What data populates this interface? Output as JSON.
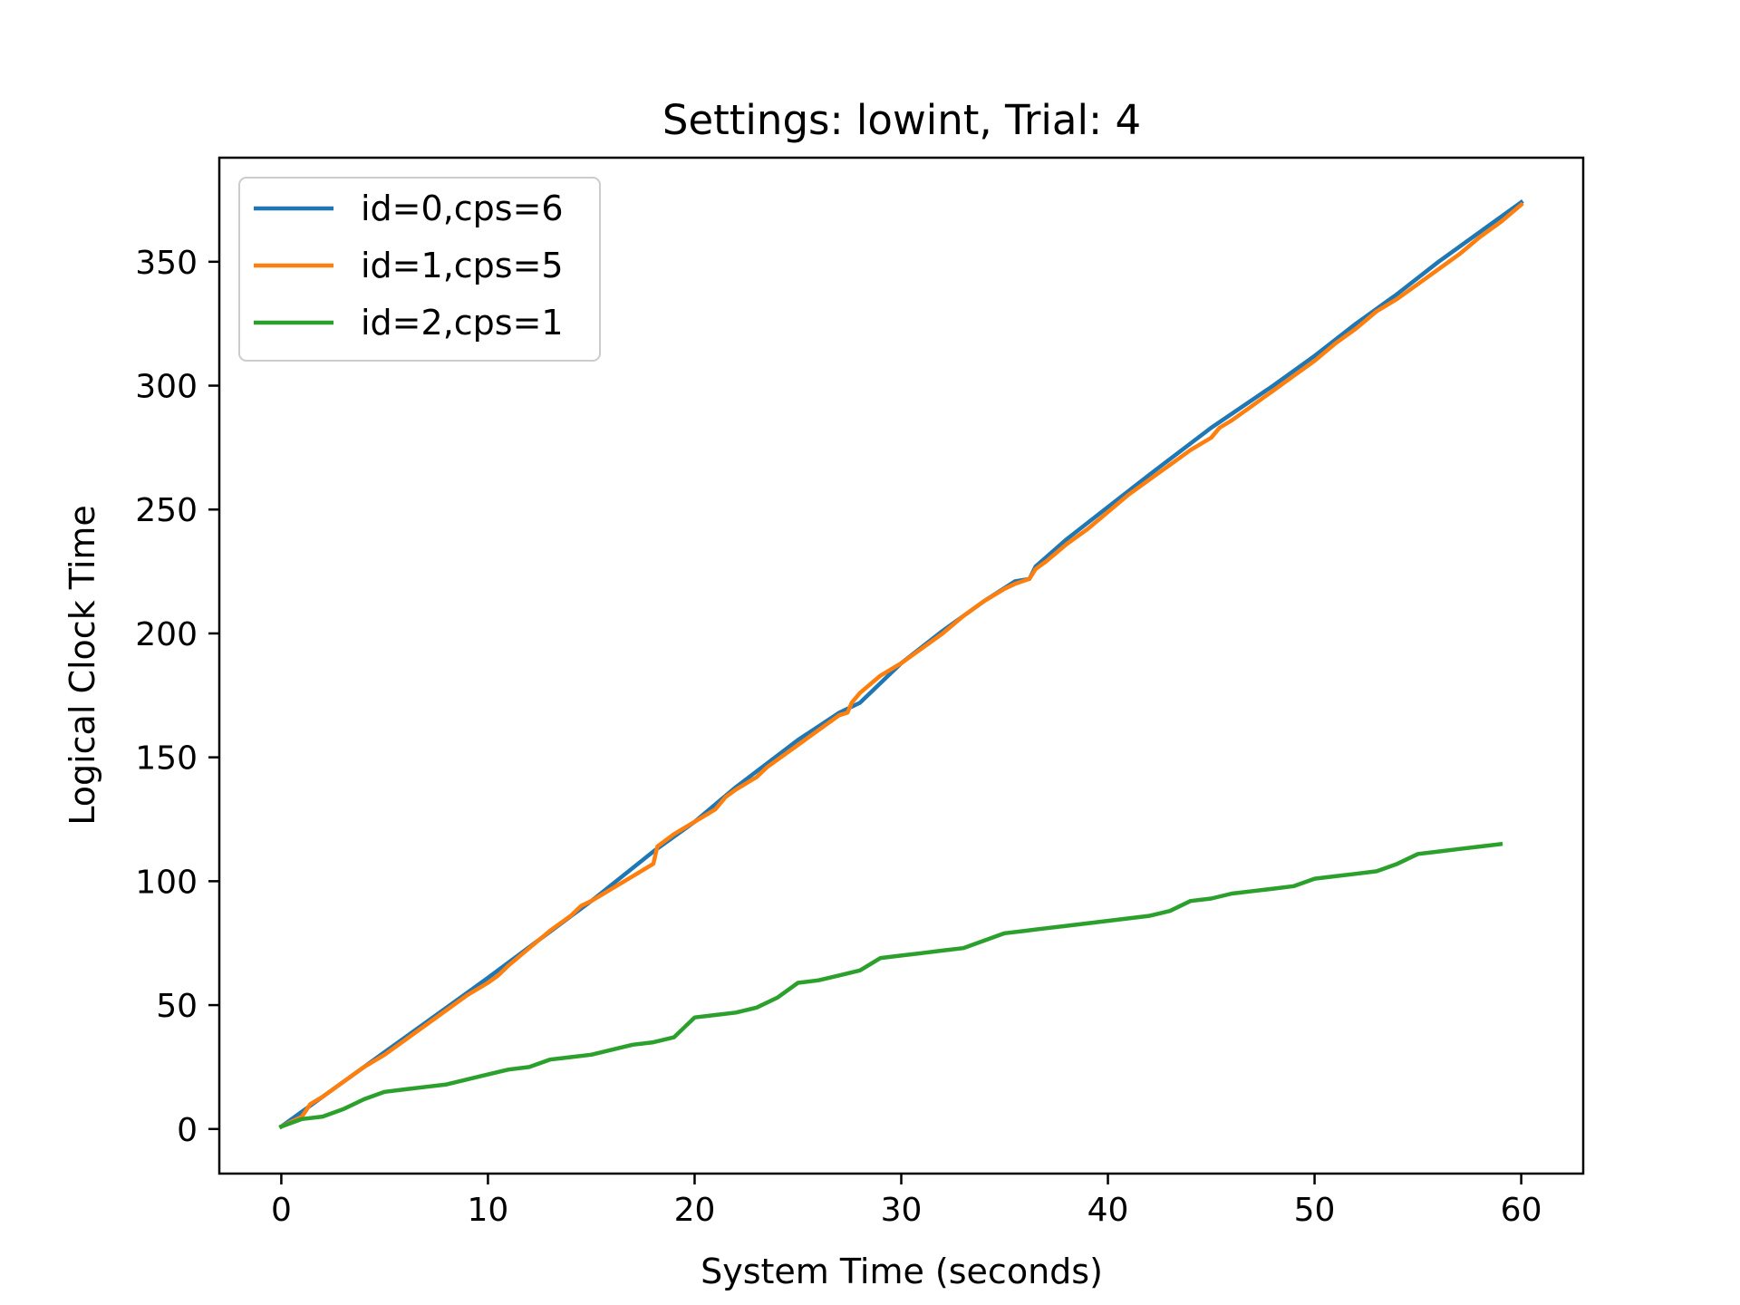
{
  "chart_data": {
    "type": "line",
    "title": "Settings: lowint, Trial: 4",
    "xlabel": "System Time (seconds)",
    "ylabel": "Logical Clock Time",
    "xlim": [
      -3,
      63
    ],
    "ylim": [
      -18,
      392
    ],
    "xticks": [
      0,
      10,
      20,
      30,
      40,
      50,
      60
    ],
    "yticks": [
      0,
      50,
      100,
      150,
      200,
      250,
      300,
      350
    ],
    "grid": false,
    "legend_position": "upper left",
    "series": [
      {
        "name": "id=0,cps=6",
        "color": "#1f77b4",
        "x": [
          0,
          5,
          10,
          15,
          18,
          20,
          22,
          25,
          27,
          28,
          30,
          32,
          34,
          35.5,
          36.2,
          36.5,
          38,
          40,
          42,
          45,
          48,
          50,
          52,
          54,
          56,
          58,
          60
        ],
        "y": [
          1,
          31,
          61,
          92,
          112,
          124,
          138,
          157,
          168,
          172,
          188,
          201,
          213,
          221,
          222,
          227,
          238,
          251,
          264,
          283,
          300,
          312,
          325,
          337,
          350,
          362,
          374
        ]
      },
      {
        "name": "id=1,cps=5",
        "color": "#ff7f0e",
        "x": [
          0,
          1,
          1.4,
          2,
          3,
          4,
          5,
          6,
          7,
          8,
          9,
          10,
          10.5,
          11,
          12,
          13,
          14,
          14.5,
          15,
          16,
          17,
          18,
          18.2,
          19,
          20,
          21,
          21.5,
          22,
          23,
          23.5,
          24,
          25,
          26,
          27,
          27.4,
          27.6,
          28,
          29,
          30,
          31,
          32,
          33,
          34,
          35,
          35.5,
          36.2,
          36.5,
          37,
          38,
          39,
          40,
          41,
          42,
          42.5,
          43,
          44,
          45,
          45.4,
          46,
          47,
          48,
          49,
          50,
          51,
          52,
          53,
          54,
          55,
          56,
          57,
          58,
          59,
          60
        ],
        "y": [
          1,
          5,
          10,
          13,
          19,
          25,
          30,
          36,
          42,
          48,
          54,
          59,
          62,
          66,
          73,
          80,
          86,
          90,
          92,
          97,
          102,
          107,
          114,
          119,
          124,
          129,
          134,
          137,
          142,
          146,
          149,
          155,
          161,
          167,
          168,
          172,
          176,
          183,
          188,
          194,
          200,
          207,
          213,
          218,
          220,
          222,
          226,
          229,
          236,
          242,
          249,
          256,
          262,
          265,
          268,
          274,
          279,
          283,
          286,
          292,
          298,
          304,
          310,
          317,
          323,
          330,
          335,
          341,
          347,
          353,
          360,
          366,
          373
        ]
      },
      {
        "name": "id=2,cps=1",
        "color": "#2ca02c",
        "x": [
          0,
          1,
          2,
          3,
          4,
          5,
          6,
          7,
          8,
          9,
          10,
          11,
          12,
          13,
          14,
          15,
          16,
          17,
          18,
          19,
          20,
          21,
          22,
          23,
          24,
          25,
          26,
          27,
          28,
          29,
          30,
          31,
          32,
          33,
          34,
          35,
          36,
          37,
          38,
          39,
          40,
          41,
          42,
          43,
          44,
          45,
          46,
          47,
          48,
          49,
          50,
          51,
          52,
          53,
          54,
          55,
          56,
          57,
          58,
          59
        ],
        "y": [
          1,
          4,
          5,
          8,
          12,
          15,
          16,
          17,
          18,
          20,
          22,
          24,
          25,
          28,
          29,
          30,
          32,
          34,
          35,
          37,
          45,
          46,
          47,
          49,
          53,
          59,
          60,
          62,
          64,
          69,
          70,
          71,
          72,
          73,
          76,
          79,
          80,
          81,
          82,
          83,
          84,
          85,
          86,
          88,
          92,
          93,
          95,
          96,
          97,
          98,
          101,
          102,
          103,
          104,
          107,
          111,
          112,
          113,
          114,
          115
        ]
      }
    ]
  }
}
